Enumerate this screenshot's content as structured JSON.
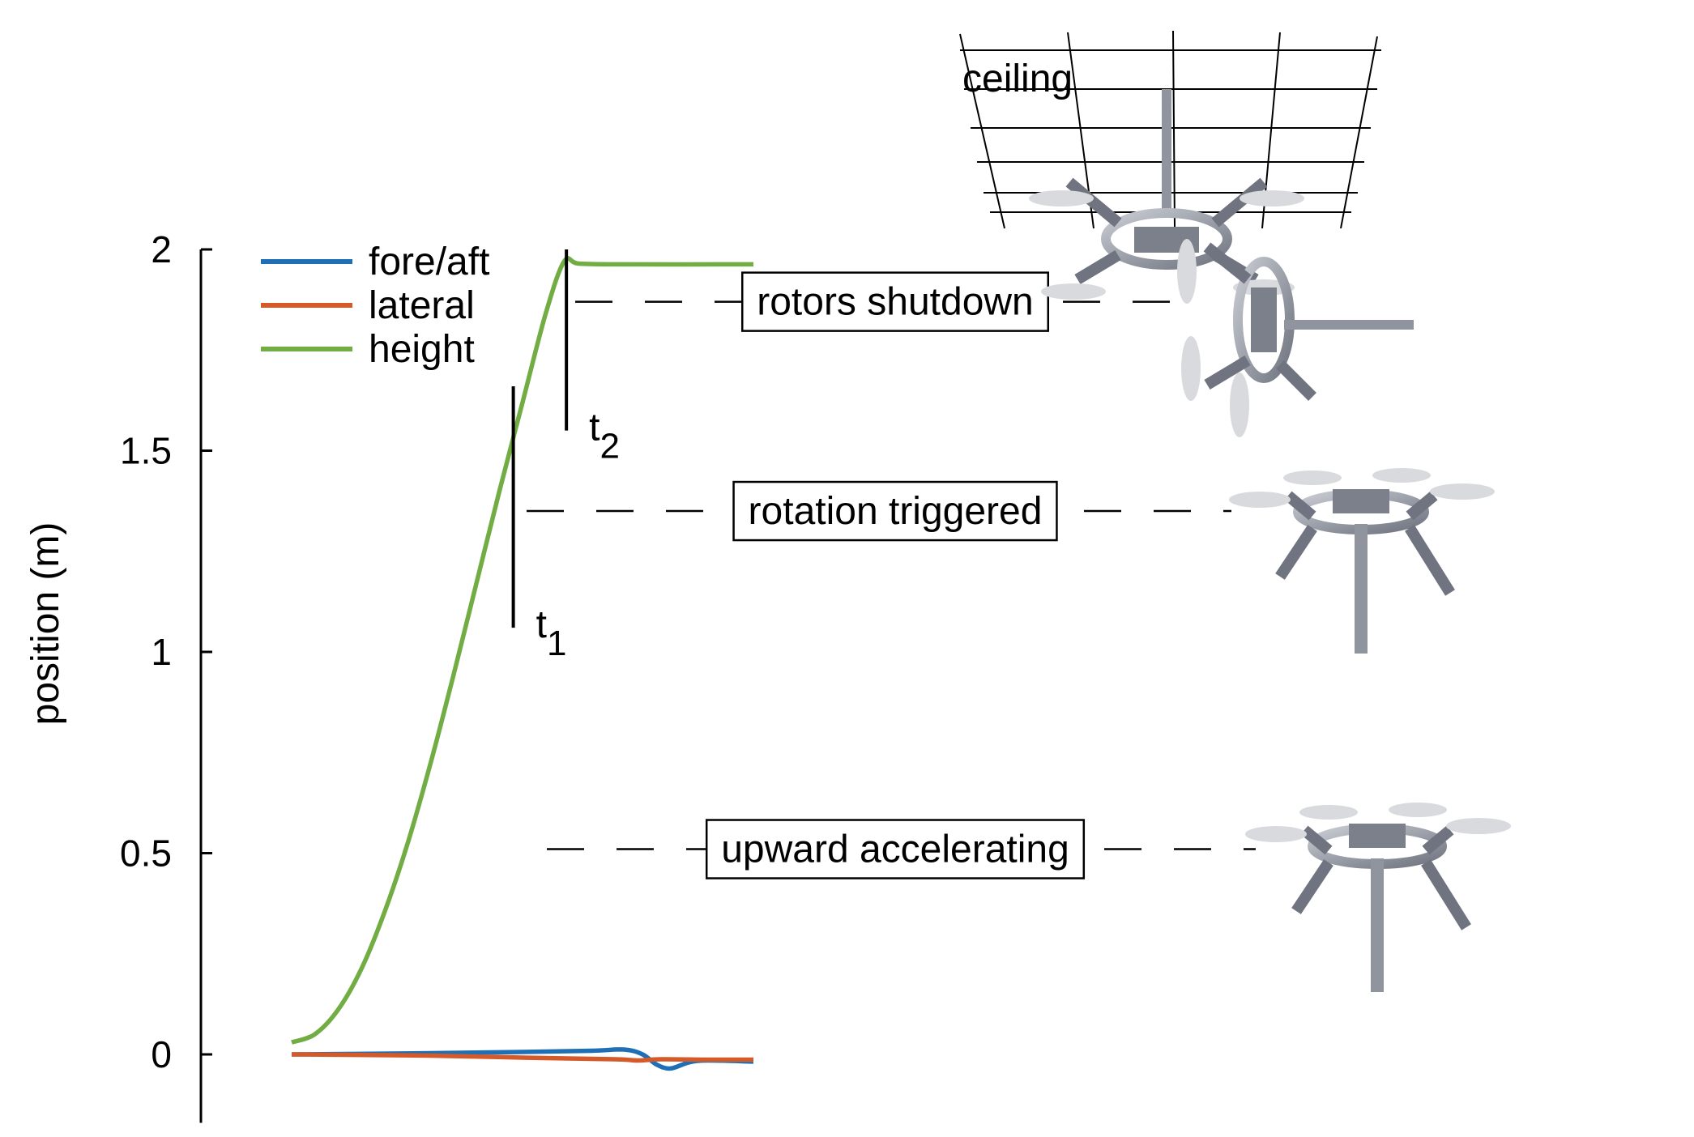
{
  "chart_data": {
    "type": "line",
    "ylabel": "position (m)",
    "xlabel": "",
    "ylim": [
      -0.17,
      2.0
    ],
    "yticks": [
      {
        "value": 0,
        "label": "0"
      },
      {
        "value": 0.5,
        "label": "0.5"
      },
      {
        "value": 1,
        "label": "1"
      },
      {
        "value": 1.5,
        "label": "1.5"
      },
      {
        "value": 2,
        "label": "2"
      }
    ],
    "x_axis_shown": false,
    "grid": false,
    "legend_position": "top-left",
    "series": [
      {
        "name": "fore/aft",
        "color": "#1f6fb6",
        "points": [
          [
            0,
            0
          ],
          [
            0.3,
            0.003
          ],
          [
            0.5,
            0.006
          ],
          [
            0.65,
            0.009
          ],
          [
            0.72,
            0.012
          ],
          [
            0.76,
            0.0
          ],
          [
            0.79,
            -0.025
          ],
          [
            0.82,
            -0.035
          ],
          [
            0.86,
            -0.02
          ],
          [
            0.9,
            -0.015
          ],
          [
            1.0,
            -0.018
          ]
        ]
      },
      {
        "name": "lateral",
        "color": "#d45a29",
        "points": [
          [
            0,
            0
          ],
          [
            0.3,
            -0.003
          ],
          [
            0.5,
            -0.008
          ],
          [
            0.7,
            -0.012
          ],
          [
            0.75,
            -0.015
          ],
          [
            0.8,
            -0.012
          ],
          [
            0.9,
            -0.013
          ],
          [
            1.0,
            -0.013
          ]
        ]
      },
      {
        "name": "height",
        "color": "#72ad44",
        "points": [
          [
            0,
            0.03
          ],
          [
            0.05,
            0.05
          ],
          [
            0.1,
            0.11
          ],
          [
            0.15,
            0.21
          ],
          [
            0.2,
            0.35
          ],
          [
            0.25,
            0.52
          ],
          [
            0.3,
            0.72
          ],
          [
            0.35,
            0.94
          ],
          [
            0.4,
            1.17
          ],
          [
            0.45,
            1.4
          ],
          [
            0.5,
            1.62
          ],
          [
            0.55,
            1.84
          ],
          [
            0.59,
            1.97
          ],
          [
            0.62,
            1.965
          ],
          [
            0.7,
            1.963
          ],
          [
            1.0,
            1.963
          ]
        ]
      }
    ],
    "markers": [
      {
        "label": "t",
        "sub": "1",
        "x": 0.48,
        "y": 1.35,
        "y_low": 1.06,
        "y_high": 1.66
      },
      {
        "label": "t",
        "sub": "2",
        "x": 0.595,
        "y": 1.87,
        "y_low": 1.55,
        "y_high": 2.0
      }
    ],
    "annotations": [
      {
        "text": "rotors shutdown",
        "y": 1.87
      },
      {
        "text": "rotation triggered",
        "y": 1.35
      },
      {
        "text": "upward accelerating",
        "y": 0.51
      }
    ],
    "illustration_labels": {
      "ceiling": "ceiling"
    }
  }
}
